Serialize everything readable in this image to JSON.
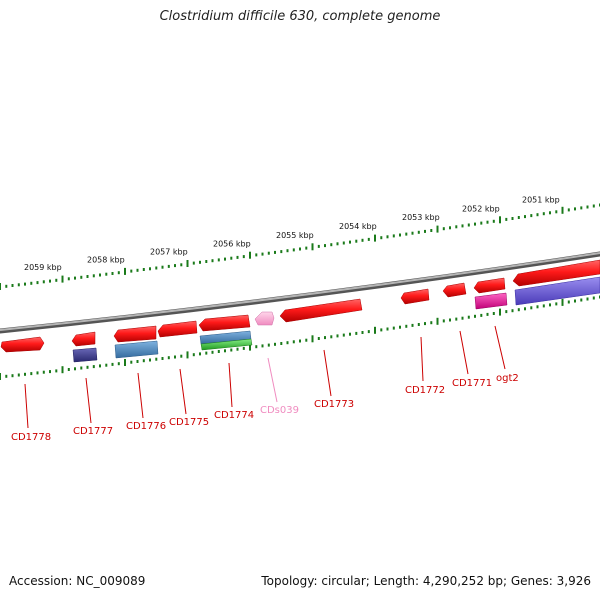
{
  "title": "Clostridium difficile 630, complete genome",
  "footer": {
    "accession": "Accession: NC_009089",
    "summary": "Topology: circular; Length: 4,290,252 bp; Genes: 3,926"
  },
  "colors": {
    "gene_red": "#ff1a1a",
    "gene_pink": "#f7a8d0",
    "gene_magenta": "#ee1199",
    "feature_navy": "#3b3a8a",
    "feature_steelblue": "#4a88c0",
    "feature_green": "#33cc33",
    "feature_purple": "#6655dd",
    "backbone": "#888888",
    "ticks": "#1a7a1a",
    "label_red": "#cc0000",
    "label_pink": "#f08cc0"
  },
  "scale_ticks": [
    "2059 kbp",
    "2058 kbp",
    "2057 kbp",
    "2056 kbp",
    "2055 kbp",
    "2054 kbp",
    "2053 kbp",
    "2052 kbp",
    "2051 kbp"
  ],
  "gene_labels": [
    "CD1778",
    "CD1777",
    "CD1776",
    "CD1775",
    "CD1774",
    "CDs039",
    "CD1773",
    "CD1772",
    "CD1771",
    "ogt2"
  ]
}
